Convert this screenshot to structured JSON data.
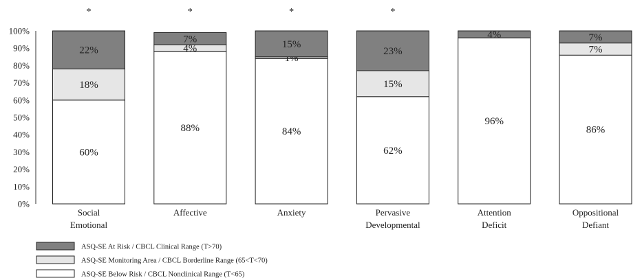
{
  "chart_data": {
    "type": "bar",
    "stacked": true,
    "categories": [
      [
        "Social",
        "Emotional"
      ],
      [
        "Affective"
      ],
      [
        "Anxiety"
      ],
      [
        "Pervasive",
        "Developmental"
      ],
      [
        "Attention",
        "Deficit"
      ],
      [
        "Oppositional",
        "Defiant"
      ]
    ],
    "significance_marks": [
      "*",
      "*",
      "*",
      "*",
      "",
      ""
    ],
    "series": [
      {
        "name": "ASQ-SE Below Risk / CBCL Nonclinical Range (T<65)",
        "color": "#ffffff",
        "values": [
          60,
          88,
          84,
          62,
          96,
          86
        ],
        "labels": [
          "60%",
          "88%",
          "84%",
          "62%",
          "96%",
          "86%"
        ]
      },
      {
        "name": "ASQ-SE Monitoring Area / CBCL Borderline Range (65<T<70)",
        "color": "#e6e6e6",
        "values": [
          18,
          4,
          1,
          15,
          0,
          7
        ],
        "labels": [
          "18%",
          "4%",
          "1%",
          "15%",
          "",
          "7%"
        ]
      },
      {
        "name": "ASQ-SE At Risk / CBCL Clinical Range (T>70)",
        "color": "#808080",
        "values": [
          22,
          7,
          15,
          23,
          4,
          7
        ],
        "labels": [
          "22%",
          "7%",
          "15%",
          "23%",
          "4%",
          "7%"
        ]
      }
    ],
    "yticks": [
      "0%",
      "10%",
      "20%",
      "30%",
      "40%",
      "50%",
      "60%",
      "70%",
      "80%",
      "90%",
      "100%"
    ],
    "ylim": [
      0,
      100
    ],
    "legend_position": "bottom-left",
    "legend_order": [
      2,
      1,
      0
    ]
  }
}
